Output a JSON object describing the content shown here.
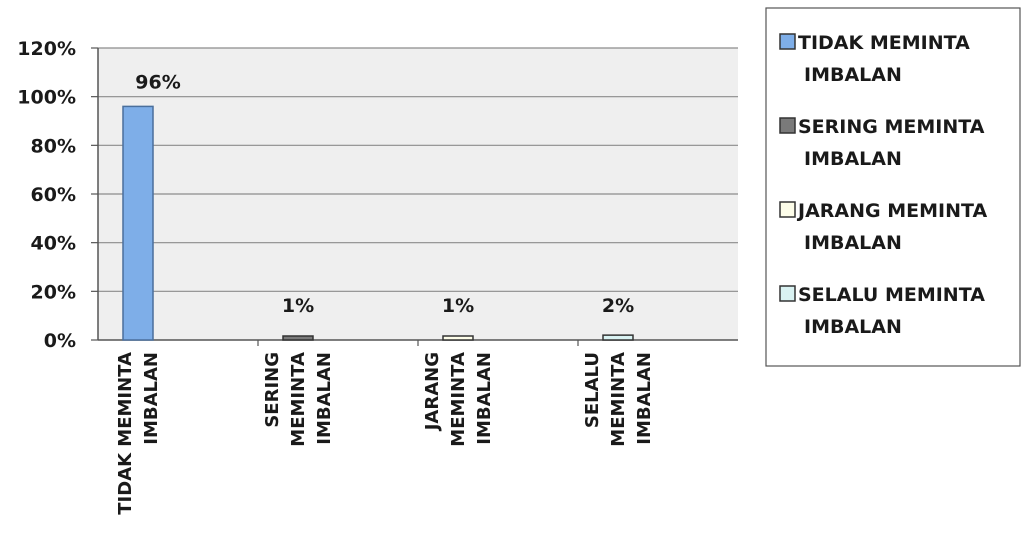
{
  "chart_data": {
    "type": "bar",
    "title": "",
    "xlabel": "",
    "ylabel": "",
    "ylim": [
      0,
      1.2
    ],
    "y_ticks": [
      "120%",
      "100%",
      "80%",
      "60%",
      "40%",
      "20%",
      "0%"
    ],
    "grid": true,
    "legend_position": "right",
    "categories": [
      [
        "TIDAK MEMINTA",
        "IMBALAN"
      ],
      [
        "SERING",
        "MEMINTA",
        "IMBALAN"
      ],
      [
        "JARANG",
        "MEMINTA",
        "IMBALAN"
      ],
      [
        "SELALU",
        "MEMINTA",
        "IMBALAN"
      ]
    ],
    "values": [
      0.96,
      0.01,
      0.01,
      0.02
    ],
    "data_labels": [
      "96%",
      "1%",
      "1%",
      "2%"
    ],
    "colors": [
      "#7eaee8",
      "#7a7a7a",
      "#fdfde9",
      "#d9f2f2"
    ],
    "legend": [
      {
        "lines": [
          "TIDAK MEMINTA",
          "IMBALAN"
        ],
        "color": "#7eaee8"
      },
      {
        "lines": [
          "SERING MEMINTA",
          "IMBALAN"
        ],
        "color": "#7a7a7a"
      },
      {
        "lines": [
          "JARANG MEMINTA",
          "IMBALAN"
        ],
        "color": "#fdfde9"
      },
      {
        "lines": [
          "SELALU MEMINTA",
          "IMBALAN"
        ],
        "color": "#d9f2f2"
      }
    ],
    "plot_background": "#efefef"
  }
}
